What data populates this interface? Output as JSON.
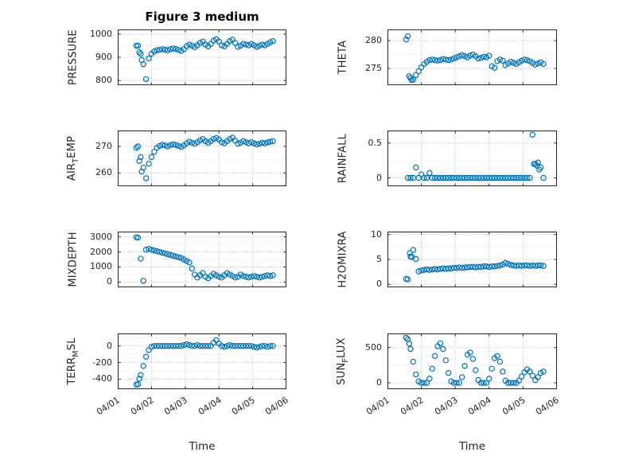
{
  "title": "Figure 3 medium",
  "xlabel": "Time",
  "marker_color": "#0072BD",
  "axis_color": "#262626",
  "grid_color": "#b0b0b0",
  "minor_grid_color": "#d8d8d8",
  "x_tick_labels": [
    "04/01",
    "04/02",
    "04/03",
    "04/04",
    "04/05",
    "04/06"
  ],
  "x_ticks": [
    0,
    1,
    2,
    3,
    4,
    5
  ],
  "xlim": [
    0,
    5
  ],
  "x_base": [
    0.6,
    0.68,
    0.76,
    0.84,
    0.92,
    1.0,
    1.08,
    1.16,
    1.24,
    1.32,
    1.4,
    1.48,
    1.56,
    1.64,
    1.72,
    1.8,
    1.88,
    1.96,
    2.04,
    2.12,
    2.2,
    2.28,
    2.36,
    2.44,
    2.52,
    2.6,
    2.68,
    2.76,
    2.84,
    2.92,
    3.0,
    3.08,
    3.16,
    3.24,
    3.32,
    3.4,
    3.48,
    3.56,
    3.64,
    3.72,
    3.8,
    3.88,
    3.96,
    4.04,
    4.12,
    4.2,
    4.28,
    4.36,
    4.44,
    4.52,
    4.6
  ],
  "chart_data": [
    {
      "name": "PRESSURE",
      "type": "scatter",
      "marker": "circle-open",
      "ylabel_parts": [
        {
          "t": "PRESSURE"
        }
      ],
      "ylim": [
        780,
        1020
      ],
      "yticks": [
        800,
        900,
        1000
      ],
      "y": [
        950,
        915,
        870,
        806,
        895,
        915,
        925,
        930,
        932,
        935,
        933,
        930,
        935,
        938,
        936,
        932,
        928,
        935,
        948,
        955,
        950,
        944,
        952,
        962,
        968,
        955,
        948,
        958,
        972,
        978,
        968,
        952,
        948,
        958,
        970,
        976,
        962,
        945,
        950,
        958,
        955,
        952,
        958,
        952,
        945,
        950,
        955,
        952,
        958,
        965,
        970
      ],
      "extra": [
        [
          0.55,
          950
        ],
        [
          0.64,
          922
        ],
        [
          0.71,
          888
        ]
      ]
    },
    {
      "name": "AIR_TEMP",
      "type": "scatter",
      "marker": "circle-open",
      "ylabel_parts": [
        {
          "t": "AIR"
        },
        {
          "t": "T",
          "sub": true
        },
        {
          "t": "EMP"
        }
      ],
      "ylim": [
        255,
        276
      ],
      "yticks": [
        260,
        270
      ],
      "y": [
        270,
        266,
        262,
        258,
        263.5,
        266,
        268,
        269.5,
        270.2,
        270.6,
        270.4,
        270,
        270.5,
        270.8,
        270.6,
        270.2,
        269.8,
        270.4,
        271.2,
        271.8,
        271.4,
        271,
        271.6,
        272.3,
        272.8,
        272,
        271.4,
        272,
        272.8,
        273.2,
        272.6,
        271.6,
        271.2,
        272,
        272.8,
        273.3,
        272.2,
        271,
        271.4,
        272,
        271.6,
        271.2,
        271.6,
        271.2,
        270.8,
        271,
        271.4,
        271.2,
        271.5,
        271.8,
        272
      ],
      "extra": [
        [
          0.55,
          269.5
        ],
        [
          0.64,
          264.5
        ],
        [
          0.71,
          260.5
        ]
      ]
    },
    {
      "name": "MIXDEPTH",
      "type": "scatter",
      "marker": "circle-open",
      "ylabel_parts": [
        {
          "t": "MIXDEPTH"
        }
      ],
      "ylim": [
        -350,
        3350
      ],
      "yticks": [
        0,
        1000,
        2000,
        3000
      ],
      "y": [
        2950,
        1550,
        80,
        2150,
        2200,
        2150,
        2100,
        2050,
        2000,
        1950,
        1900,
        1850,
        1800,
        1750,
        1700,
        1650,
        1600,
        1500,
        1400,
        1300,
        900,
        500,
        300,
        450,
        600,
        350,
        250,
        400,
        550,
        450,
        350,
        300,
        450,
        600,
        500,
        400,
        300,
        350,
        500,
        400,
        350,
        300,
        350,
        400,
        350,
        300,
        350,
        400,
        450,
        400,
        450
      ],
      "extra": [
        [
          0.55,
          2980
        ]
      ]
    },
    {
      "name": "TERR_MSL",
      "type": "scatter",
      "marker": "circle-open",
      "ylabel_parts": [
        {
          "t": "TERR"
        },
        {
          "t": "M",
          "sub": true
        },
        {
          "t": "SL"
        }
      ],
      "ylim": [
        -520,
        150
      ],
      "yticks": [
        -400,
        -200,
        0
      ],
      "y": [
        -460,
        -350,
        -240,
        -130,
        -50,
        -10,
        0,
        0,
        0,
        0,
        0,
        0,
        0,
        0,
        0,
        0,
        0,
        10,
        20,
        10,
        0,
        0,
        10,
        0,
        0,
        0,
        0,
        0,
        40,
        70,
        30,
        0,
        -10,
        0,
        10,
        0,
        0,
        0,
        0,
        0,
        0,
        0,
        0,
        -10,
        -20,
        -10,
        0,
        0,
        -10,
        0,
        0
      ],
      "extra": [
        [
          0.55,
          -465
        ],
        [
          0.64,
          -395
        ]
      ]
    },
    {
      "name": "THETA",
      "type": "scatter",
      "marker": "circle-open",
      "ylabel_parts": [
        {
          "t": "THETA"
        }
      ],
      "ylim": [
        272,
        282
      ],
      "yticks": [
        275,
        280
      ],
      "y": [
        280.8,
        273.3,
        273.0,
        273.8,
        274.5,
        275.2,
        275.8,
        276.2,
        276.5,
        276.6,
        276.5,
        276.4,
        276.5,
        276.7,
        276.6,
        276.5,
        276.6,
        276.8,
        277.0,
        277.2,
        277.4,
        277.2,
        277.0,
        277.3,
        277.5,
        277.2,
        276.8,
        276.9,
        277.1,
        277.0,
        277.3,
        275.4,
        275.1,
        276.3,
        276.6,
        276.4,
        275.6,
        275.9,
        276.2,
        276.0,
        275.8,
        276.1,
        276.4,
        276.6,
        276.5,
        276.3,
        276.0,
        275.7,
        275.9,
        276.1,
        275.8
      ],
      "extra": [
        [
          0.55,
          280.2
        ],
        [
          0.64,
          273.6
        ],
        [
          0.71,
          272.9
        ]
      ]
    },
    {
      "name": "RAINFALL",
      "type": "scatter",
      "marker": "circle-open",
      "ylabel_parts": [
        {
          "t": "RAINFALL"
        }
      ],
      "ylim": [
        -0.12,
        0.68
      ],
      "yticks": [
        0,
        0.5
      ],
      "y": [
        0,
        0,
        0,
        0.15,
        0,
        0.05,
        0,
        0,
        0.07,
        0,
        0,
        0,
        0,
        0,
        0,
        0,
        0,
        0,
        0,
        0,
        0,
        0,
        0,
        0,
        0,
        0,
        0,
        0,
        0,
        0,
        0,
        0,
        0,
        0,
        0,
        0,
        0,
        0,
        0,
        0,
        0,
        0,
        0,
        0,
        0,
        0,
        0.62,
        0.2,
        0.22,
        0.15,
        0
      ],
      "extra": [
        [
          4.32,
          0.2
        ],
        [
          4.4,
          0.18
        ],
        [
          4.48,
          0.12
        ]
      ]
    },
    {
      "name": "H2OMIXRA",
      "type": "scatter",
      "marker": "circle-open",
      "ylabel_parts": [
        {
          "t": "H2OMIXRA"
        }
      ],
      "ylim": [
        -0.6,
        10.6
      ],
      "yticks": [
        0,
        5,
        10
      ],
      "y": [
        1.0,
        5.6,
        6.9,
        5.1,
        2.6,
        2.8,
        2.9,
        3.0,
        2.9,
        3.0,
        3.1,
        3.0,
        3.1,
        3.2,
        3.1,
        3.2,
        3.2,
        3.3,
        3.3,
        3.4,
        3.3,
        3.4,
        3.4,
        3.5,
        3.5,
        3.4,
        3.5,
        3.5,
        3.6,
        3.6,
        3.5,
        3.6,
        3.6,
        3.7,
        3.8,
        4.0,
        4.3,
        4.1,
        3.9,
        3.8,
        3.7,
        3.8,
        3.7,
        3.8,
        3.8,
        3.7,
        3.8,
        3.7,
        3.8,
        3.8,
        3.7
      ],
      "extra": [
        [
          0.55,
          1.1
        ],
        [
          0.66,
          6.3
        ],
        [
          0.72,
          5.5
        ]
      ]
    },
    {
      "name": "SUN_FLUX",
      "type": "scatter",
      "marker": "circle-open",
      "ylabel_parts": [
        {
          "t": "SUN"
        },
        {
          "t": "F",
          "sub": true
        },
        {
          "t": "LUX"
        }
      ],
      "ylim": [
        -90,
        700
      ],
      "yticks": [
        0,
        500
      ],
      "y": [
        620,
        480,
        300,
        120,
        20,
        0,
        0,
        0,
        60,
        200,
        380,
        520,
        560,
        480,
        320,
        140,
        20,
        0,
        0,
        0,
        80,
        240,
        400,
        430,
        340,
        180,
        40,
        0,
        0,
        0,
        60,
        200,
        350,
        380,
        300,
        160,
        30,
        0,
        0,
        0,
        0,
        30,
        90,
        150,
        190,
        160,
        100,
        40,
        80,
        140,
        160
      ],
      "extra": [
        [
          0.55,
          640
        ],
        [
          0.64,
          555
        ]
      ]
    }
  ]
}
